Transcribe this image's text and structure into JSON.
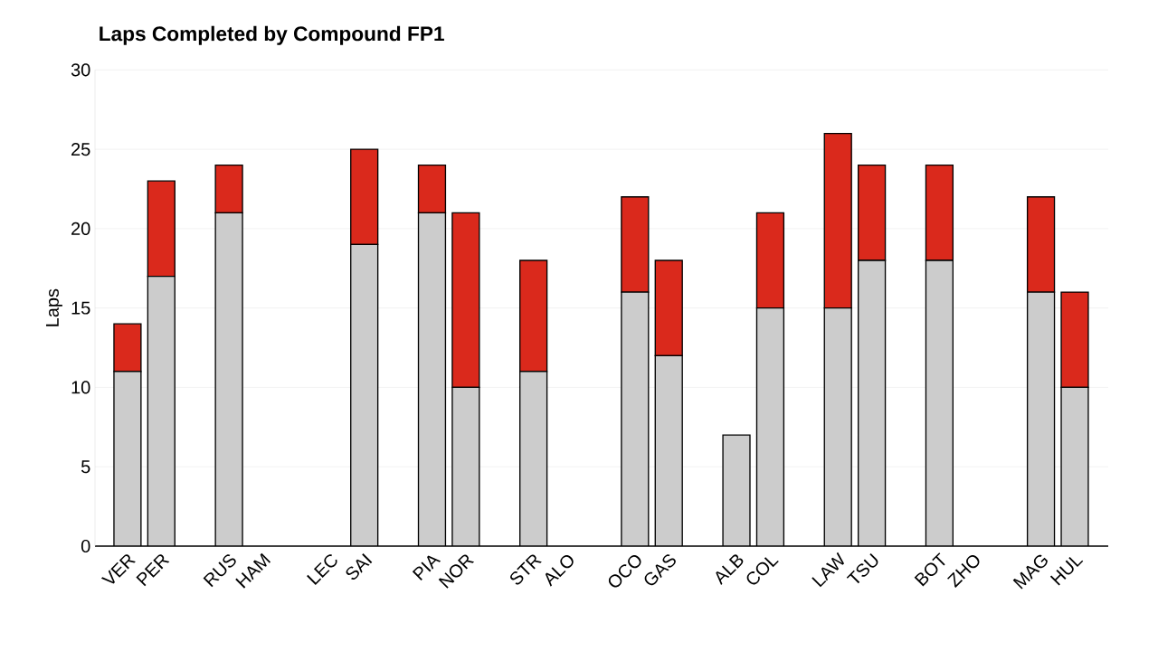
{
  "chart_data": {
    "type": "bar",
    "title": "Laps Completed by Compound FP1",
    "ylabel": "Laps",
    "categories": [
      "VER",
      "PER",
      null,
      "RUS",
      "HAM",
      null,
      "LEC",
      "SAI",
      null,
      "PIA",
      "NOR",
      null,
      "STR",
      "ALO",
      null,
      "OCO",
      "GAS",
      null,
      "ALB",
      "COL",
      null,
      "LAW",
      "TSU",
      null,
      "BOT",
      "ZHO",
      null,
      "MAG",
      "HUL"
    ],
    "series": [
      {
        "color": "#cccccc",
        "values": [
          11,
          17,
          null,
          21,
          0,
          null,
          0,
          19,
          null,
          21,
          10,
          null,
          11,
          0,
          null,
          16,
          12,
          null,
          7,
          15,
          null,
          15,
          18,
          null,
          18,
          0,
          null,
          16,
          10
        ]
      },
      {
        "color": "#da291c",
        "values": [
          3,
          6,
          null,
          3,
          0,
          null,
          0,
          6,
          null,
          3,
          11,
          null,
          7,
          0,
          null,
          6,
          6,
          null,
          0,
          6,
          null,
          11,
          6,
          null,
          6,
          0,
          null,
          6,
          6
        ]
      }
    ],
    "stacked": true,
    "ylim": [
      0,
      30
    ],
    "yticks": [
      0,
      5,
      10,
      15,
      20,
      25,
      30
    ],
    "grid": "y"
  }
}
